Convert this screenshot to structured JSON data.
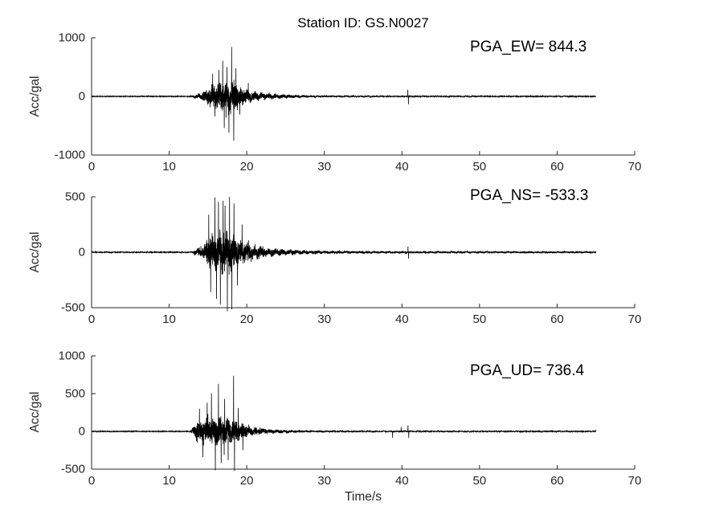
{
  "figure": {
    "title": "Station ID: GS.N0027",
    "xlabel": "Time/s",
    "background": "#ffffff",
    "axis_color": "#262626",
    "trace_color": "#000000"
  },
  "chart_data": [
    {
      "type": "line",
      "component": "EW",
      "annotation": "PGA_EW= 844.3",
      "pga": 844.3,
      "ylabel": "Acc/gal",
      "xlim": [
        0,
        70
      ],
      "ylim": [
        -1000,
        1000
      ],
      "xticks": [
        0,
        10,
        20,
        30,
        40,
        50,
        60,
        70
      ],
      "yticks": [
        1000,
        0,
        -1000
      ],
      "grid": false,
      "trace": {
        "t_start": 0,
        "t_end": 65,
        "dt": 0.01,
        "seed": 101,
        "envelope_gal": [
          [
            0,
            5
          ],
          [
            12.6,
            5
          ],
          [
            13.2,
            30
          ],
          [
            14.3,
            70
          ],
          [
            15.2,
            170
          ],
          [
            16.0,
            240
          ],
          [
            16.8,
            290
          ],
          [
            17.6,
            310
          ],
          [
            18.4,
            300
          ],
          [
            19.0,
            190
          ],
          [
            20.0,
            120
          ],
          [
            21.0,
            85
          ],
          [
            22.5,
            55
          ],
          [
            24.0,
            40
          ],
          [
            26.0,
            28
          ],
          [
            28.0,
            20
          ],
          [
            31.0,
            14
          ],
          [
            35.0,
            11
          ],
          [
            40.0,
            10
          ],
          [
            45.0,
            9
          ],
          [
            55.0,
            8
          ],
          [
            65.0,
            8
          ]
        ],
        "spikes_gal": [
          [
            15.6,
            380
          ],
          [
            15.9,
            -340
          ],
          [
            16.4,
            450
          ],
          [
            16.9,
            610
          ],
          [
            17.1,
            -540
          ],
          [
            17.45,
            500
          ],
          [
            17.7,
            -620
          ],
          [
            18.05,
            844.3
          ],
          [
            18.32,
            -755
          ],
          [
            18.6,
            480
          ],
          [
            19.1,
            -310
          ],
          [
            20.2,
            230
          ],
          [
            40.76,
            115
          ],
          [
            40.84,
            -135
          ]
        ]
      }
    },
    {
      "type": "line",
      "component": "NS",
      "annotation": "PGA_NS= -533.3",
      "pga": -533.3,
      "ylabel": "Acc/gal",
      "xlim": [
        0,
        70
      ],
      "ylim": [
        -500,
        500
      ],
      "xticks": [
        0,
        10,
        20,
        30,
        40,
        50,
        60,
        70
      ],
      "yticks": [
        500,
        0,
        -500
      ],
      "grid": false,
      "trace": {
        "t_start": 0,
        "t_end": 65,
        "dt": 0.01,
        "seed": 202,
        "envelope_gal": [
          [
            0,
            4
          ],
          [
            12.8,
            4
          ],
          [
            13.3,
            25
          ],
          [
            14.3,
            60
          ],
          [
            15.0,
            130
          ],
          [
            15.8,
            175
          ],
          [
            16.6,
            195
          ],
          [
            17.6,
            195
          ],
          [
            18.4,
            180
          ],
          [
            19.0,
            120
          ],
          [
            20.0,
            85
          ],
          [
            21.5,
            60
          ],
          [
            23.0,
            40
          ],
          [
            25.0,
            28
          ],
          [
            28.0,
            18
          ],
          [
            32.0,
            13
          ],
          [
            40.0,
            11
          ],
          [
            50.0,
            9
          ],
          [
            65.0,
            8
          ]
        ],
        "spikes_gal": [
          [
            15.1,
            340
          ],
          [
            15.35,
            -360
          ],
          [
            15.9,
            495
          ],
          [
            16.1,
            -420
          ],
          [
            16.35,
            455
          ],
          [
            16.6,
            -470
          ],
          [
            16.95,
            465
          ],
          [
            17.2,
            420
          ],
          [
            17.5,
            -533.3
          ],
          [
            17.78,
            498
          ],
          [
            18.08,
            -515
          ],
          [
            18.35,
            440
          ],
          [
            18.8,
            -300
          ],
          [
            19.4,
            250
          ],
          [
            40.78,
            52
          ],
          [
            40.86,
            -58
          ]
        ]
      }
    },
    {
      "type": "line",
      "component": "UD",
      "annotation": "PGA_UD= 736.4",
      "pga": 736.4,
      "ylabel": "Acc/gal",
      "xlim": [
        0,
        70
      ],
      "ylim": [
        -500,
        1000
      ],
      "xticks": [
        0,
        10,
        20,
        30,
        40,
        50,
        60,
        70
      ],
      "yticks": [
        1000,
        500,
        0,
        -500
      ],
      "grid": false,
      "trace": {
        "t_start": 0,
        "t_end": 65,
        "dt": 0.01,
        "seed": 303,
        "envelope_gal": [
          [
            0,
            4
          ],
          [
            12.7,
            4
          ],
          [
            13.1,
            80
          ],
          [
            13.6,
            140
          ],
          [
            14.2,
            165
          ],
          [
            15.5,
            185
          ],
          [
            17.0,
            180
          ],
          [
            18.2,
            165
          ],
          [
            19.0,
            125
          ],
          [
            19.8,
            95
          ],
          [
            20.8,
            65
          ],
          [
            21.8,
            45
          ],
          [
            23.0,
            30
          ],
          [
            25.0,
            20
          ],
          [
            27.0,
            15
          ],
          [
            30.0,
            12
          ],
          [
            35.0,
            10
          ],
          [
            40.0,
            9
          ],
          [
            50.0,
            8
          ],
          [
            65.0,
            7
          ]
        ],
        "spikes_gal": [
          [
            13.9,
            300
          ],
          [
            14.35,
            -340
          ],
          [
            14.9,
            380
          ],
          [
            15.45,
            505
          ],
          [
            15.95,
            -515
          ],
          [
            16.35,
            630
          ],
          [
            16.7,
            -420
          ],
          [
            17.15,
            430
          ],
          [
            17.6,
            -380
          ],
          [
            18.3,
            736.4
          ],
          [
            18.42,
            -525
          ],
          [
            18.9,
            310
          ],
          [
            19.5,
            -250
          ],
          [
            38.8,
            -85
          ],
          [
            39.9,
            60
          ],
          [
            40.78,
            80
          ],
          [
            40.88,
            -88
          ]
        ]
      }
    }
  ]
}
